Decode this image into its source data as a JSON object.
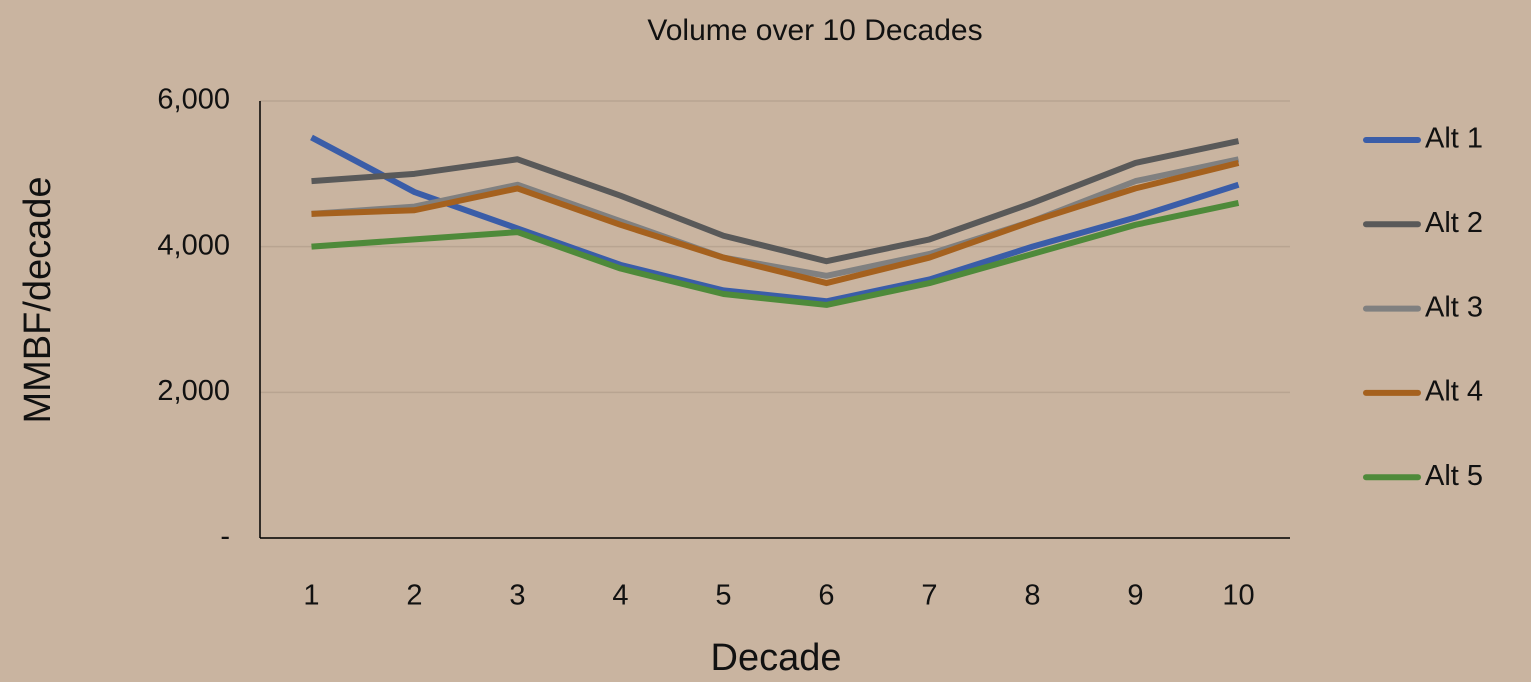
{
  "chart_data": {
    "type": "line",
    "title": "Volume over 10 Decades",
    "x_label": "Decade",
    "y_label": "MMBF/decade",
    "categories": [
      "1",
      "2",
      "3",
      "4",
      "5",
      "6",
      "7",
      "8",
      "9",
      "10"
    ],
    "series": [
      {
        "name": "Alt 1",
        "color": "#3a5da8",
        "values": [
          5500,
          4750,
          4250,
          3750,
          3400,
          3250,
          3550,
          4000,
          4400,
          4850
        ]
      },
      {
        "name": "Alt 2",
        "color": "#595959",
        "values": [
          4900,
          5000,
          5200,
          4700,
          4150,
          3800,
          4100,
          4600,
          5150,
          5450
        ]
      },
      {
        "name": "Alt 3",
        "color": "#808080",
        "values": [
          4450,
          4550,
          4850,
          4350,
          3850,
          3600,
          3900,
          4350,
          4900,
          5200
        ]
      },
      {
        "name": "Alt 4",
        "color": "#a5611e",
        "values": [
          4450,
          4500,
          4800,
          4300,
          3850,
          3500,
          3850,
          4350,
          4800,
          5150
        ]
      },
      {
        "name": "Alt 5",
        "color": "#4e8a3a",
        "values": [
          4000,
          4100,
          4200,
          3700,
          3350,
          3200,
          3500,
          3900,
          4300,
          4600
        ]
      }
    ],
    "ylim": [
      0,
      6000
    ],
    "yticks": [
      {
        "value": 0,
        "label": "-"
      },
      {
        "value": 2000,
        "label": "2,000"
      },
      {
        "value": 4000,
        "label": "4,000"
      },
      {
        "value": 6000,
        "label": "6,000"
      }
    ],
    "grid": true,
    "legend": "right"
  }
}
